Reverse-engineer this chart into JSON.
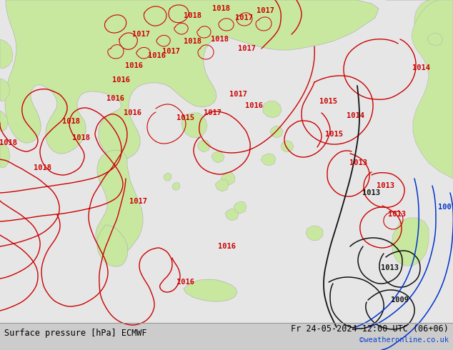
{
  "title_left": "Surface pressure [hPa] ECMWF",
  "title_right": "Fr 24-05-2024 12:00 UTC (06+06)",
  "watermark": "©weatheronline.co.uk",
  "bg_color": "#e6e6e6",
  "land_color": "#c8e8a0",
  "contour_red": "#cc0000",
  "contour_black": "#111111",
  "contour_blue": "#0033cc",
  "coast_color": "#aaaaaa",
  "bottom_bar_color": "#cccccc",
  "font_size_labels": 7.5,
  "font_size_title": 8.5,
  "font_size_watermark": 7.5
}
